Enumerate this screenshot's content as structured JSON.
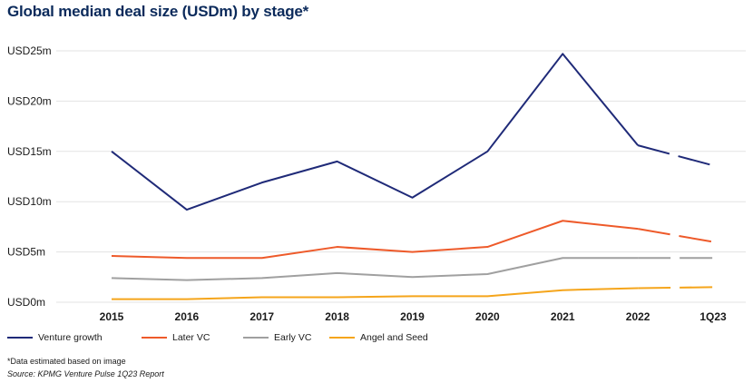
{
  "title": "Global median deal size (USDm) by stage*",
  "note": "*Data estimated based on image",
  "source": "Source: KPMG Venture Pulse 1Q23 Report",
  "chart_data": {
    "type": "line",
    "categories": [
      "2015",
      "2016",
      "2017",
      "2018",
      "2019",
      "2020",
      "2021",
      "2022",
      "1Q23"
    ],
    "y_ticks": [
      "USD0m",
      "USD5m",
      "USD10m",
      "USD15m",
      "USD20m",
      "USD25m"
    ],
    "ylim": [
      0,
      25
    ],
    "grid": true,
    "legend_position": "bottom",
    "dashed_from_category": "2022",
    "series": [
      {
        "name": "Venture growth",
        "color": "#1f2a78",
        "values": [
          15.0,
          9.2,
          11.9,
          14.0,
          10.4,
          15.0,
          24.7,
          15.6,
          13.6
        ]
      },
      {
        "name": "Later VC",
        "color": "#ee5a2a",
        "values": [
          4.6,
          4.4,
          4.4,
          5.5,
          5.0,
          5.5,
          8.1,
          7.3,
          6.0
        ]
      },
      {
        "name": "Early VC",
        "color": "#a0a0a0",
        "values": [
          2.4,
          2.2,
          2.4,
          2.9,
          2.5,
          2.8,
          4.4,
          4.4,
          4.4
        ]
      },
      {
        "name": "Angel and Seed",
        "color": "#f5a51b",
        "values": [
          0.3,
          0.3,
          0.5,
          0.5,
          0.6,
          0.6,
          1.2,
          1.4,
          1.5
        ]
      }
    ]
  }
}
